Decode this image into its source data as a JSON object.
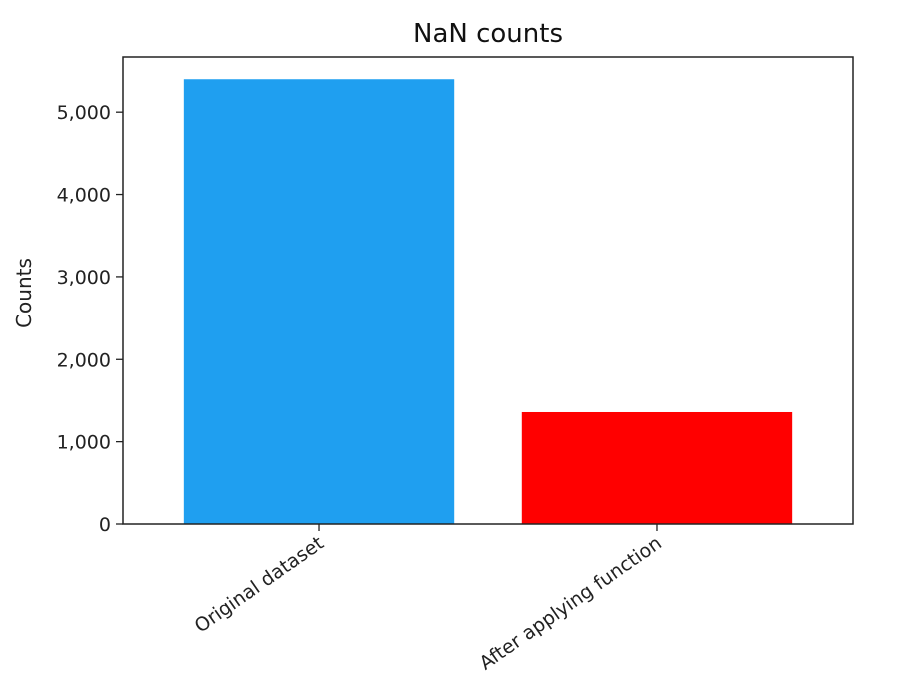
{
  "chart_data": {
    "type": "bar",
    "title": "NaN counts",
    "xlabel": "",
    "ylabel": "Counts",
    "categories": [
      "Original dataset",
      "After applying function"
    ],
    "values": [
      5400,
      1360
    ],
    "bar_colors": [
      "#1f9ff0",
      "#ff0000"
    ],
    "ylim": [
      0,
      5670
    ],
    "yticks": [
      0,
      1000,
      2000,
      3000,
      4000,
      5000
    ],
    "ytick_labels": [
      "0",
      "1,000",
      "2,000",
      "3,000",
      "4,000",
      "5,000"
    ],
    "grid": false,
    "legend": "none"
  }
}
